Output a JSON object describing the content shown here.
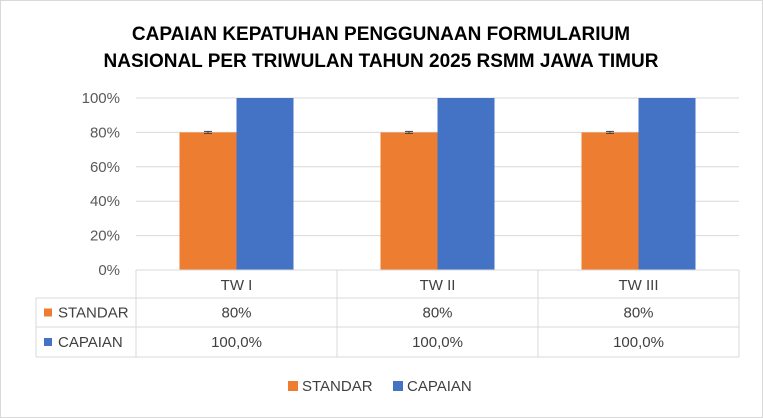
{
  "chart_data": {
    "type": "bar",
    "title_lines": [
      "CAPAIAN KEPATUHAN PENGGUNAAN FORMULARIUM",
      "NASIONAL PER TRIWULAN TAHUN 2025 RSMM JAWA TIMUR"
    ],
    "categories": [
      "TW I",
      "TW II",
      "TW III"
    ],
    "series": [
      {
        "name": "STANDAR",
        "color": "#ED7D31",
        "values": [
          80,
          80,
          80
        ],
        "table_labels": [
          "80%",
          "80%",
          "80%"
        ],
        "error_bars": true
      },
      {
        "name": "CAPAIAN",
        "color": "#4472C4",
        "values": [
          100,
          100,
          100
        ],
        "table_labels": [
          "100,0%",
          "100,0%",
          "100,0%"
        ],
        "error_bars": false
      }
    ],
    "ylim": [
      0,
      100
    ],
    "yticks": [
      0,
      20,
      40,
      60,
      80,
      100
    ],
    "ytick_labels": [
      "0%",
      "20%",
      "40%",
      "60%",
      "80%",
      "100%"
    ],
    "grid": true,
    "data_table": true,
    "legend_position": "bottom"
  }
}
